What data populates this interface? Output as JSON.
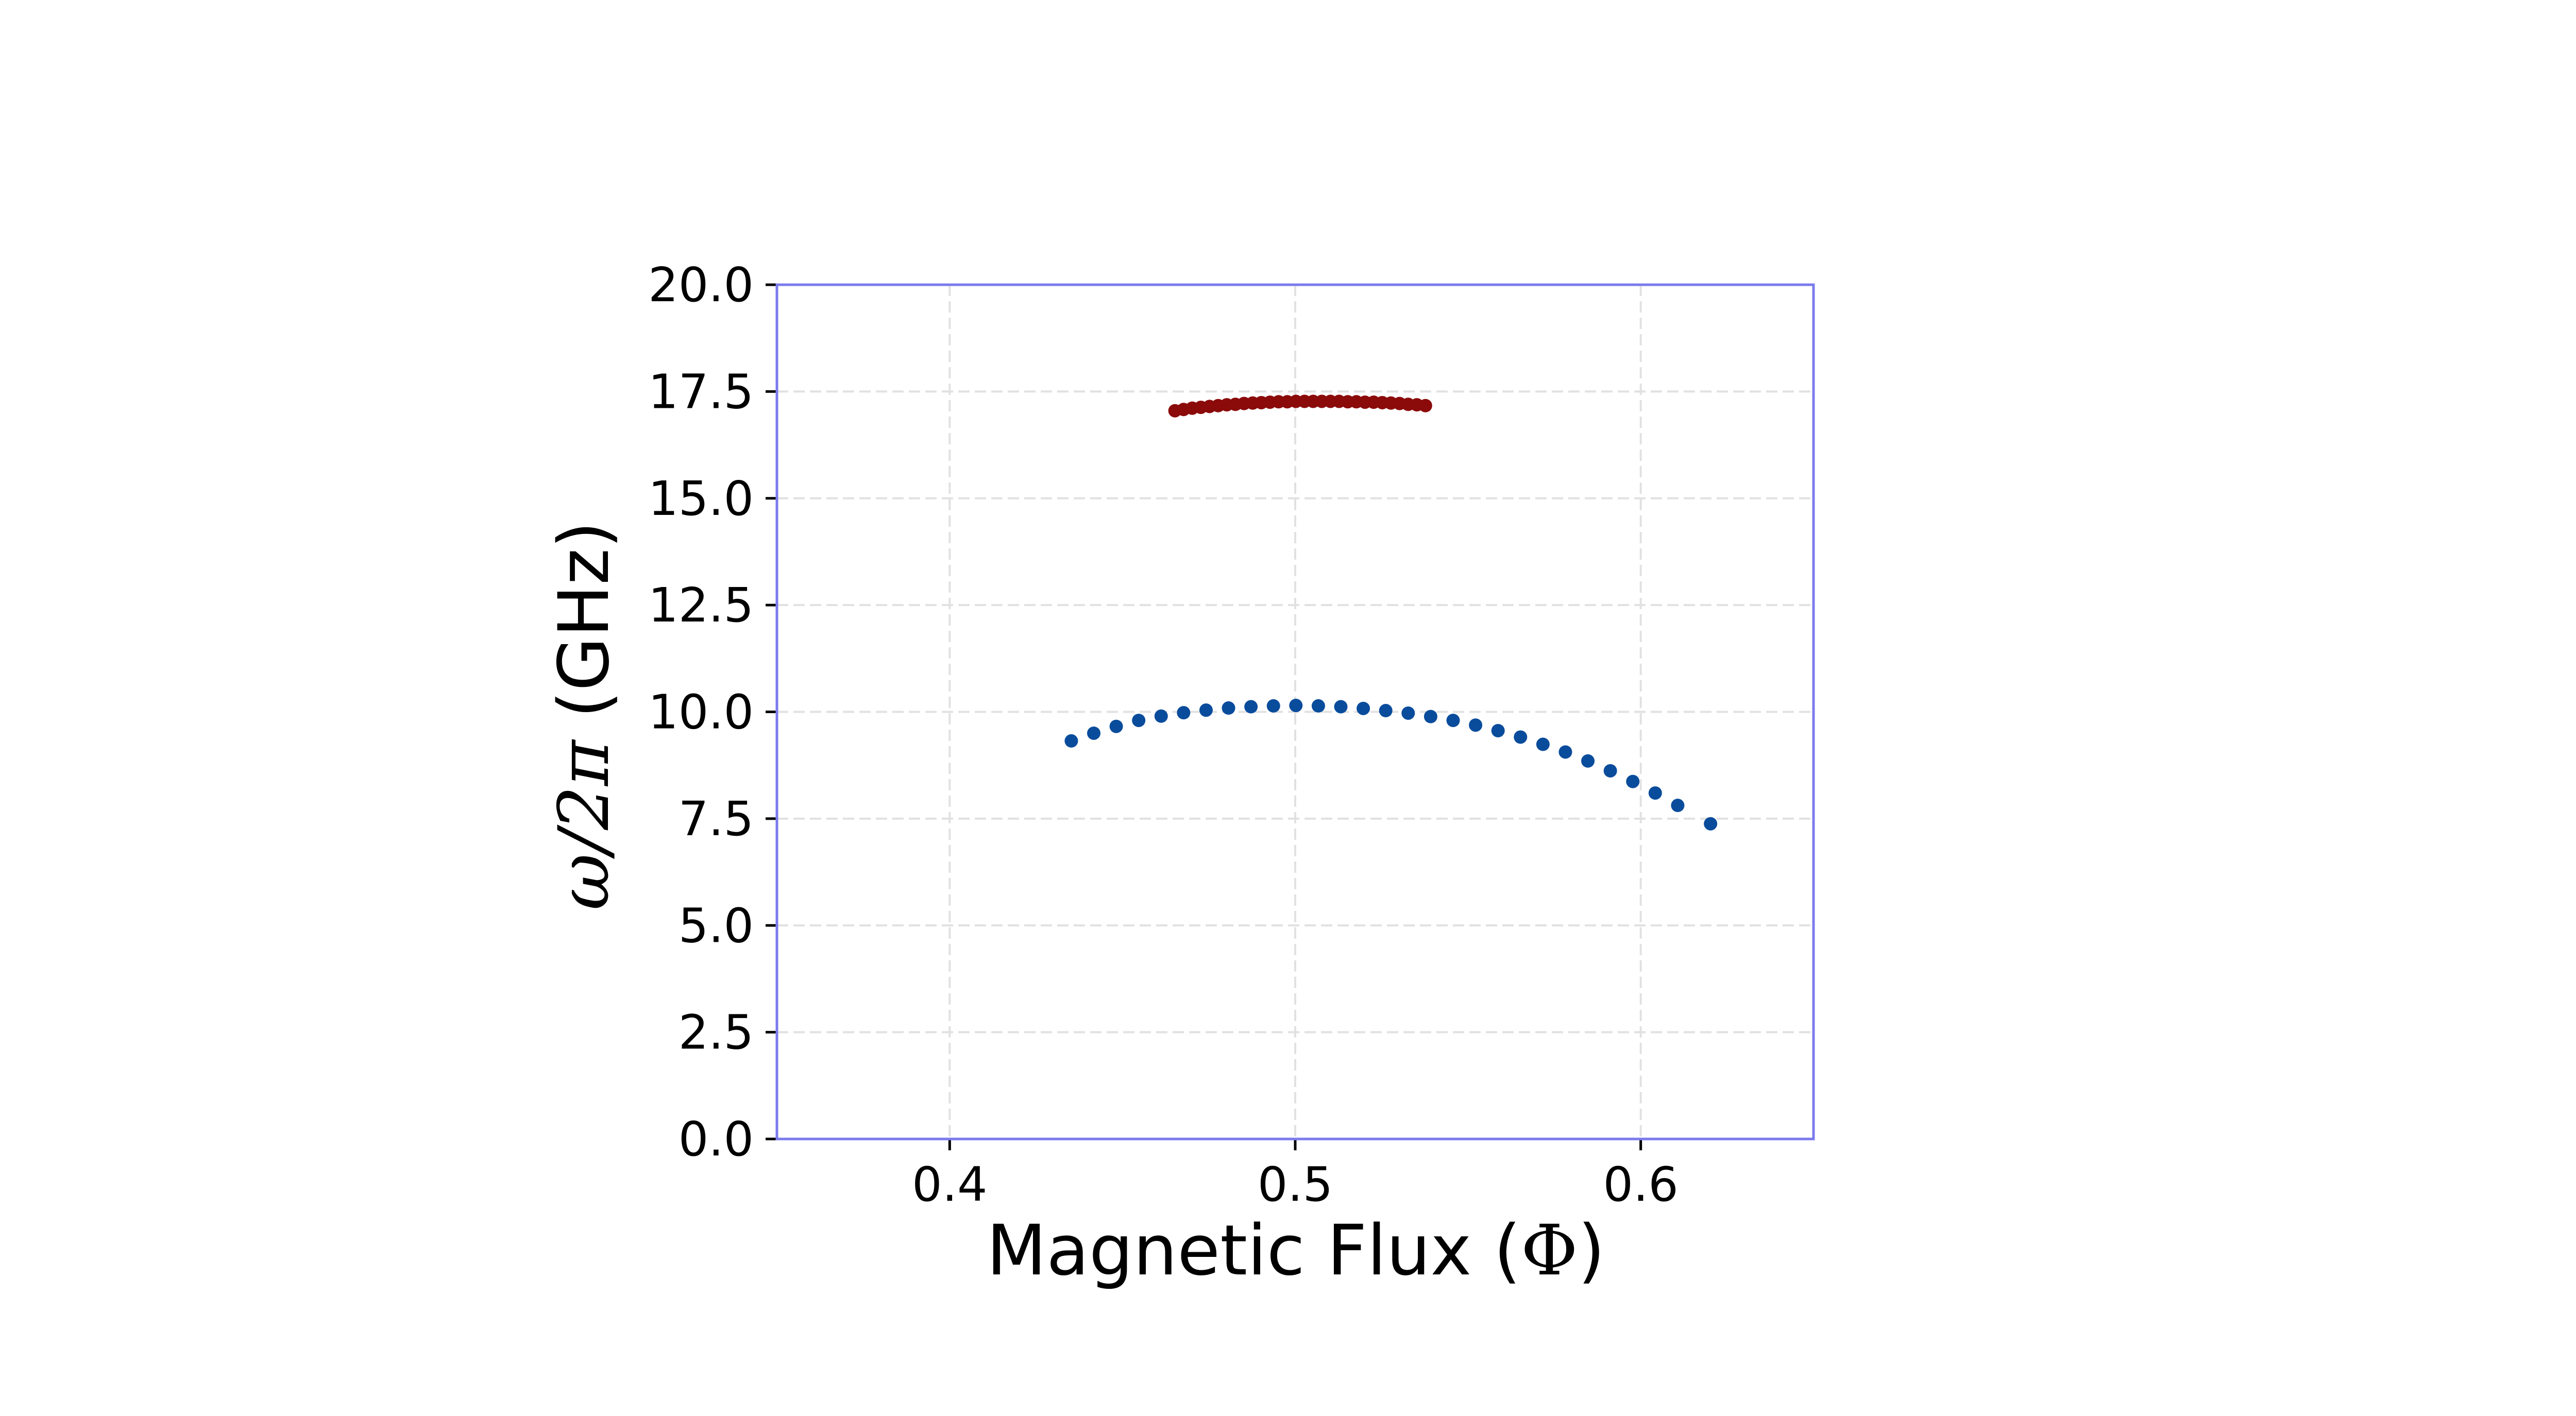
{
  "chart_data": {
    "type": "scatter",
    "title": "",
    "xlabel": "Magnetic Flux (Φ)",
    "ylabel": "ω/2π (GHz)",
    "xlim": [
      0.35,
      0.65
    ],
    "ylim": [
      0.0,
      20.0
    ],
    "xticks": [
      "0.4",
      "0.5",
      "0.6"
    ],
    "yticks": [
      "0.0",
      "2.5",
      "5.0",
      "7.5",
      "10.0",
      "12.5",
      "15.0",
      "17.5",
      "20.0"
    ],
    "grid": true,
    "legend": "none",
    "colors": {
      "frame": "#7b7bec",
      "grid": "#e1e1e1",
      "upper": "#8b0a0a",
      "lower": "#0a4c9c"
    },
    "series": [
      {
        "color": "#8b0a0a",
        "x": [
          0.4652,
          0.4677,
          0.4702,
          0.4727,
          0.4752,
          0.4777,
          0.4802,
          0.4827,
          0.4852,
          0.4877,
          0.4902,
          0.4927,
          0.4952,
          0.4977,
          0.5002,
          0.5027,
          0.5052,
          0.5077,
          0.5102,
          0.5127,
          0.5152,
          0.5177,
          0.5202,
          0.5227,
          0.5252,
          0.5277,
          0.5302,
          0.5327,
          0.5352,
          0.5377
        ],
        "y": [
          17.05,
          17.08,
          17.11,
          17.13,
          17.15,
          17.17,
          17.19,
          17.2,
          17.22,
          17.23,
          17.24,
          17.25,
          17.26,
          17.26,
          17.27,
          17.27,
          17.27,
          17.27,
          17.27,
          17.27,
          17.26,
          17.26,
          17.25,
          17.25,
          17.24,
          17.23,
          17.22,
          17.2,
          17.19,
          17.17
        ]
      },
      {
        "color": "#0a4c9c",
        "x": [
          0.4352,
          0.4417,
          0.4482,
          0.4547,
          0.4612,
          0.4677,
          0.4742,
          0.4807,
          0.4872,
          0.4937,
          0.5002,
          0.5067,
          0.5132,
          0.5197,
          0.5262,
          0.5327,
          0.5392,
          0.5457,
          0.5522,
          0.5587,
          0.5652,
          0.5717,
          0.5782,
          0.5847,
          0.5912,
          0.5977,
          0.6042,
          0.6107,
          0.6202
        ],
        "y": [
          9.32,
          9.5,
          9.66,
          9.8,
          9.9,
          9.98,
          10.04,
          10.09,
          10.12,
          10.14,
          10.15,
          10.14,
          10.12,
          10.08,
          10.03,
          9.97,
          9.89,
          9.8,
          9.69,
          9.56,
          9.41,
          9.24,
          9.06,
          8.85,
          8.62,
          8.37,
          8.1,
          7.81,
          7.38
        ]
      }
    ]
  }
}
